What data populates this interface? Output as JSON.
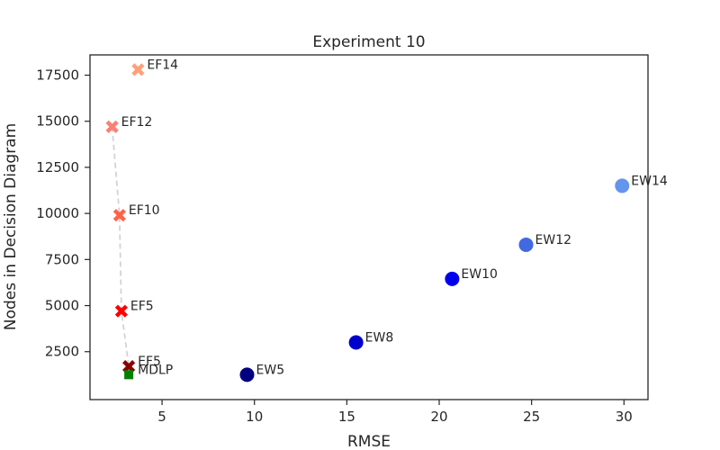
{
  "chart_data": {
    "type": "scatter",
    "title": "Experiment 10",
    "xlabel": "RMSE",
    "ylabel": "Nodes in Decision Diagram",
    "xlim": [
      1.1,
      31.3
    ],
    "ylim": [
      -100,
      18600
    ],
    "xticks": [
      5,
      10,
      15,
      20,
      25,
      30
    ],
    "yticks": [
      2500,
      5000,
      7500,
      10000,
      12500,
      15000,
      17500
    ],
    "xtick_labels": [
      "5",
      "10",
      "15",
      "20",
      "25",
      "30"
    ],
    "ytick_labels": [
      "2500",
      "5000",
      "7500",
      "10000",
      "12500",
      "15000",
      "17500"
    ],
    "grid": false,
    "points": [
      {
        "label": "EW5",
        "x": 9.6,
        "y": 1250,
        "marker": "circle",
        "color": "#000080"
      },
      {
        "label": "EW8",
        "x": 15.5,
        "y": 3000,
        "marker": "circle",
        "color": "#0000cd"
      },
      {
        "label": "EW10",
        "x": 20.7,
        "y": 6450,
        "marker": "circle",
        "color": "#0000ee"
      },
      {
        "label": "EW12",
        "x": 24.7,
        "y": 8300,
        "marker": "circle",
        "color": "#4169e1"
      },
      {
        "label": "EW14",
        "x": 29.9,
        "y": 11500,
        "marker": "circle",
        "color": "#6495ed"
      },
      {
        "label": "EF5",
        "x": 3.2,
        "y": 1700,
        "marker": "x",
        "color": "#8b0000"
      },
      {
        "label": "EF5",
        "x": 2.8,
        "y": 4700,
        "marker": "x",
        "color": "#ff0000"
      },
      {
        "label": "EF10",
        "x": 2.7,
        "y": 9900,
        "marker": "x",
        "color": "#ff6347"
      },
      {
        "label": "EF12",
        "x": 2.3,
        "y": 14700,
        "marker": "x",
        "color": "#fa8072"
      },
      {
        "label": "EF14",
        "x": 3.7,
        "y": 17800,
        "marker": "x",
        "color": "#ffa07a"
      },
      {
        "label": "MDLP",
        "x": 3.2,
        "y": 1250,
        "marker": "square",
        "color": "#008000"
      }
    ],
    "frontier_line": {
      "color": "#d3d3d3",
      "points": [
        [
          2.3,
          14700
        ],
        [
          2.7,
          9900
        ],
        [
          2.8,
          4700
        ],
        [
          3.2,
          1700
        ],
        [
          3.2,
          1250
        ]
      ]
    }
  }
}
